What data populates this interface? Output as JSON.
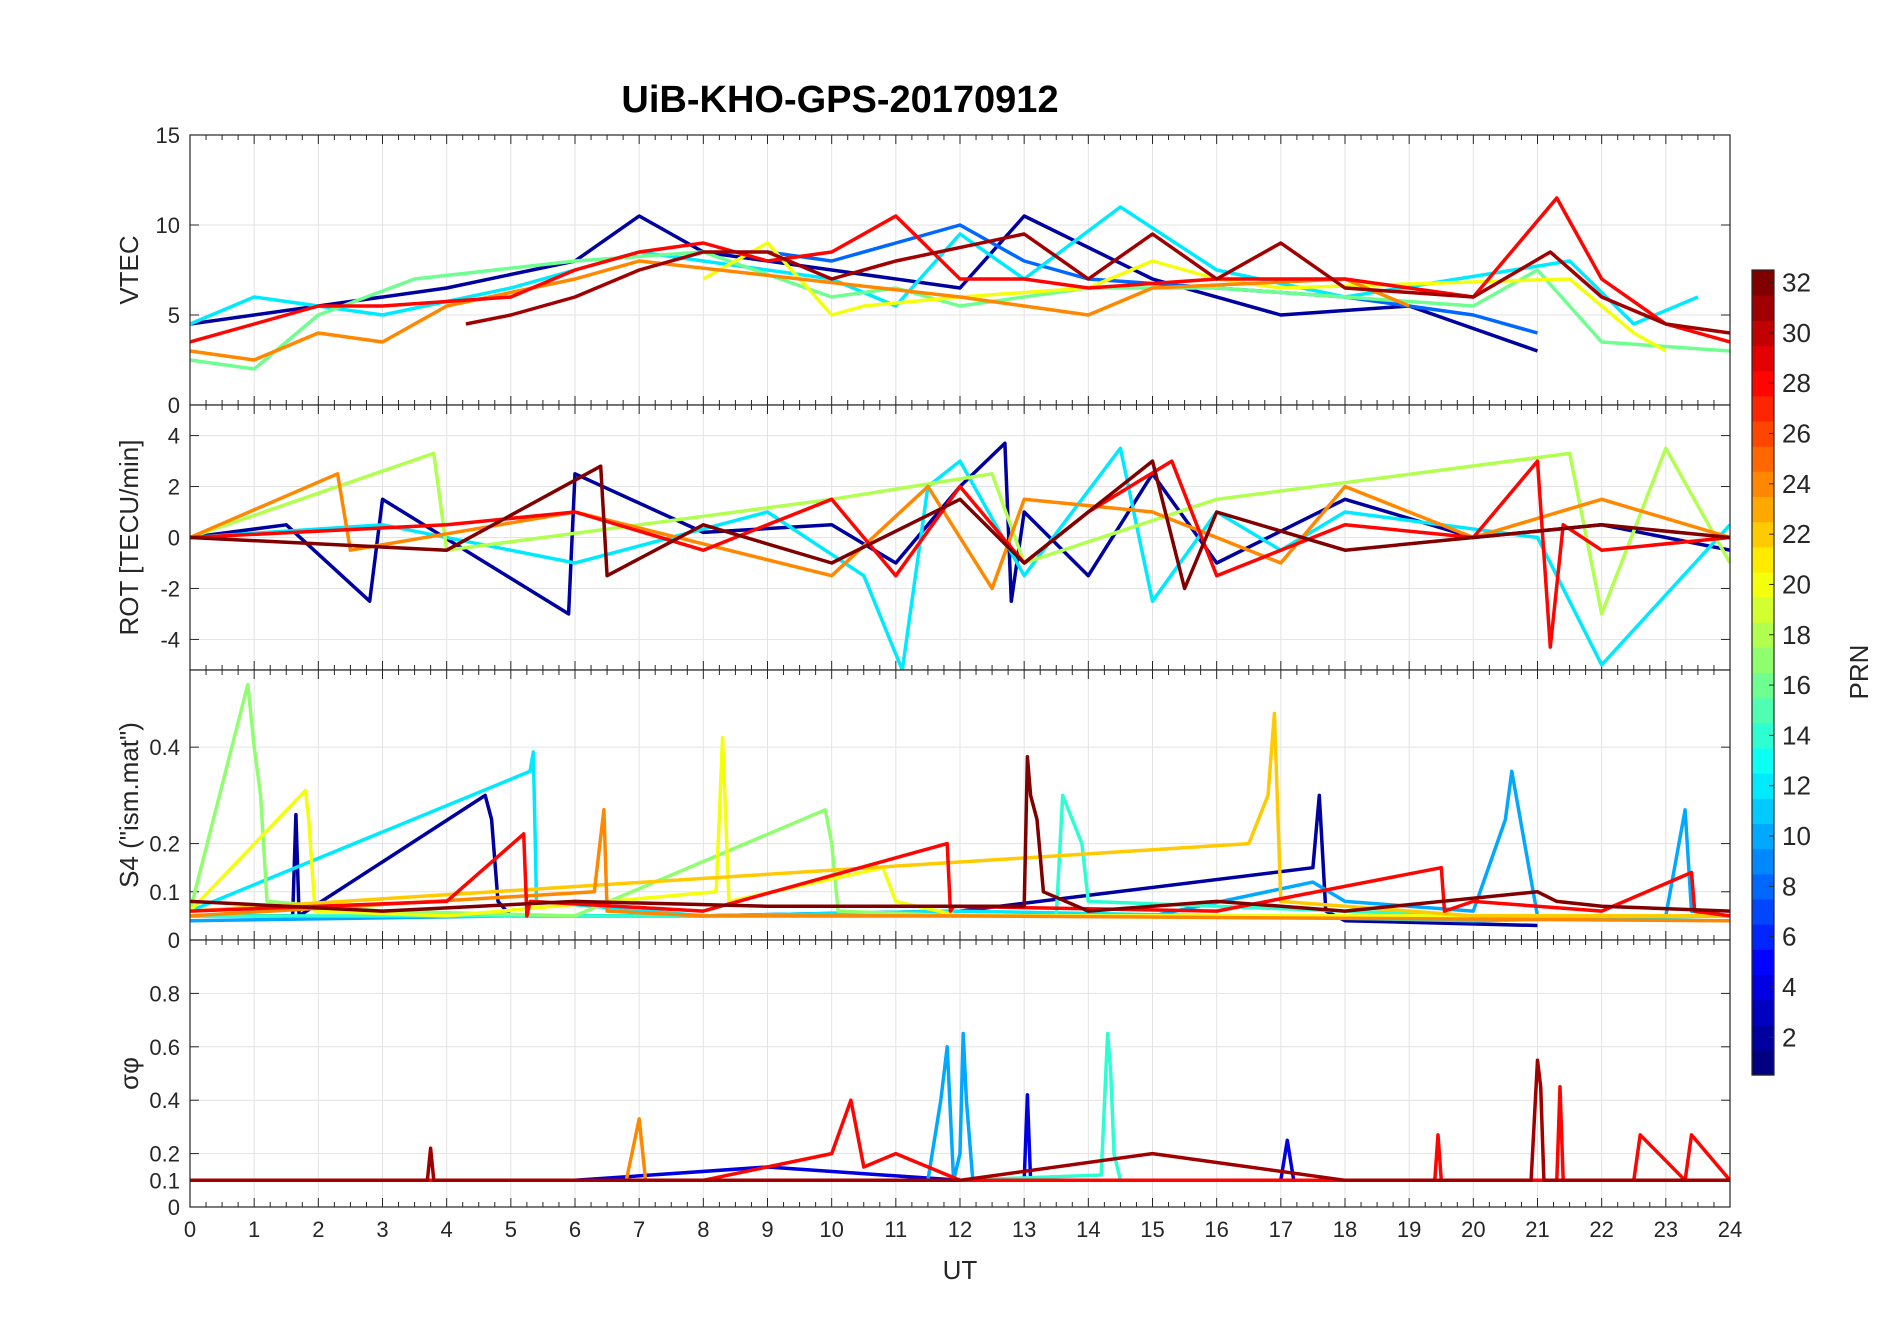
{
  "figure_title": "UiB-KHO-GPS-20170912",
  "chart_data": [
    {
      "type": "line",
      "panel": "VTEC",
      "ylabel": "VTEC",
      "ylim": [
        0,
        15
      ],
      "yticks": [
        0,
        5,
        10,
        15
      ],
      "xlim": [
        0,
        24
      ],
      "grid": true,
      "series": [
        {
          "name": "PRN 2",
          "prn": 2,
          "x": [
            0,
            2,
            4,
            6,
            7,
            8,
            10,
            12,
            13,
            15,
            17,
            19,
            21
          ],
          "values": [
            4.5,
            5.5,
            6.5,
            8.0,
            10.5,
            8.5,
            7.5,
            6.5,
            10.5,
            7.0,
            5.0,
            5.5,
            3.0
          ]
        },
        {
          "name": "PRN 8",
          "prn": 8,
          "x": [
            9,
            10,
            11,
            12,
            13,
            14,
            16,
            18,
            20,
            21
          ],
          "values": [
            8.5,
            8.0,
            9.0,
            10.0,
            8.0,
            7.0,
            6.5,
            6.0,
            5.0,
            4.0
          ]
        },
        {
          "name": "PRN 12",
          "prn": 12,
          "x": [
            0,
            1,
            3,
            5,
            7,
            10,
            11,
            12,
            13,
            14.5,
            16,
            18,
            21.5,
            22.5,
            23.5
          ],
          "values": [
            4.5,
            6.0,
            5.0,
            6.5,
            8.5,
            7.0,
            5.5,
            9.5,
            7.0,
            11.0,
            7.5,
            6.0,
            8.0,
            4.5,
            6.0
          ]
        },
        {
          "name": "PRN 16",
          "prn": 16,
          "x": [
            0,
            1,
            2,
            3.5,
            6,
            8,
            10,
            11,
            12,
            14,
            16,
            18,
            20,
            21,
            22,
            24
          ],
          "values": [
            2.5,
            2.0,
            5.0,
            7.0,
            8.0,
            8.5,
            6.0,
            6.5,
            5.5,
            6.5,
            6.5,
            6.0,
            5.5,
            7.5,
            3.5,
            3.0
          ]
        },
        {
          "name": "PRN 20",
          "prn": 20,
          "x": [
            8,
            9,
            10,
            10.5,
            12,
            14,
            15,
            16,
            17,
            21.5,
            22.5,
            23
          ],
          "values": [
            7.0,
            9.0,
            5.0,
            5.5,
            6.0,
            6.5,
            8.0,
            7.0,
            6.5,
            7.0,
            4.0,
            3.0
          ]
        },
        {
          "name": "PRN 24",
          "prn": 24,
          "x": [
            0,
            1,
            2,
            3,
            4,
            6,
            7,
            12,
            13,
            14,
            15,
            18,
            19
          ],
          "values": [
            3.0,
            2.5,
            4.0,
            3.5,
            5.5,
            7.0,
            8.0,
            6.0,
            5.5,
            5.0,
            6.5,
            7.0,
            5.5
          ]
        },
        {
          "name": "PRN 28",
          "prn": 28,
          "x": [
            0,
            1,
            2,
            3,
            5,
            6,
            7,
            8,
            9,
            10,
            11,
            12,
            13,
            14,
            16,
            18,
            20,
            21.3,
            22,
            23,
            24
          ],
          "values": [
            3.5,
            4.5,
            5.5,
            5.5,
            6.0,
            7.5,
            8.5,
            9.0,
            8.0,
            8.5,
            10.5,
            7.0,
            7.0,
            6.5,
            7.0,
            7.0,
            6.0,
            11.5,
            7.0,
            4.5,
            3.5
          ]
        },
        {
          "name": "PRN 31",
          "prn": 31,
          "x": [
            4.3,
            5,
            6,
            7,
            8,
            9,
            10,
            11,
            13,
            14,
            15,
            16,
            17,
            18,
            20,
            21.2,
            22,
            23,
            24
          ],
          "values": [
            4.5,
            5.0,
            6.0,
            7.5,
            8.5,
            8.5,
            7.0,
            8.0,
            9.5,
            7.0,
            9.5,
            7.0,
            9.0,
            6.5,
            6.0,
            8.5,
            6.0,
            4.5,
            4.0
          ]
        }
      ]
    },
    {
      "type": "line",
      "panel": "ROT",
      "ylabel": "ROT [TECU/min]",
      "ylim": [
        -5.2,
        5.2
      ],
      "yticks": [
        -4,
        -2,
        0,
        2,
        4
      ],
      "xlim": [
        0,
        24
      ],
      "grid": true,
      "series": [
        {
          "name": "PRN 2",
          "prn": 2,
          "x": [
            0,
            1.5,
            2.8,
            3,
            5.9,
            6,
            8,
            10,
            11,
            12,
            12.7,
            12.8,
            13,
            14,
            15,
            16,
            18,
            20,
            22,
            24
          ],
          "values": [
            0,
            0.5,
            -2.5,
            1.5,
            -3.0,
            2.5,
            0.2,
            0.5,
            -1.0,
            2.0,
            3.7,
            -2.5,
            1.0,
            -1.5,
            2.5,
            -1.0,
            1.5,
            0,
            0.5,
            -0.5
          ]
        },
        {
          "name": "PRN 12",
          "prn": 12,
          "x": [
            0,
            3,
            6,
            9,
            10.5,
            11.1,
            11.5,
            12,
            13,
            14.5,
            15,
            16,
            17,
            18,
            21,
            22,
            24
          ],
          "values": [
            0,
            0.5,
            -1.0,
            1.0,
            -1.5,
            -5.2,
            2.0,
            3.0,
            -1.5,
            3.5,
            -2.5,
            1.0,
            -0.5,
            1.0,
            0,
            -5.0,
            0.5
          ]
        },
        {
          "name": "PRN 18",
          "prn": 18,
          "x": [
            0,
            3.8,
            4,
            7,
            10,
            12.5,
            13,
            16,
            21.5,
            22,
            23,
            24
          ],
          "values": [
            0,
            3.3,
            -0.5,
            0.5,
            1.5,
            2.5,
            -1.0,
            1.5,
            3.3,
            -3.0,
            3.5,
            -1.0
          ]
        },
        {
          "name": "PRN 24",
          "prn": 24,
          "x": [
            0,
            2.3,
            2.5,
            6,
            10,
            11.5,
            12.5,
            13,
            15,
            17,
            18,
            20,
            22,
            24
          ],
          "values": [
            0,
            2.5,
            -0.5,
            1.0,
            -1.5,
            2.0,
            -2.0,
            1.5,
            1.0,
            -1.0,
            2.0,
            0,
            1.5,
            0
          ]
        },
        {
          "name": "PRN 28",
          "prn": 28,
          "x": [
            0,
            4,
            6,
            8,
            10,
            11,
            12,
            13,
            14,
            15.3,
            16,
            18,
            20,
            21,
            21.2,
            21.4,
            22,
            24
          ],
          "values": [
            0,
            0.5,
            1.0,
            -0.5,
            1.5,
            -1.5,
            2.0,
            -1.0,
            1.0,
            3.0,
            -1.5,
            0.5,
            0,
            3.0,
            -4.3,
            0.5,
            -0.5,
            0
          ]
        },
        {
          "name": "PRN 32",
          "prn": 32,
          "x": [
            0,
            4,
            6.4,
            6.5,
            8,
            10,
            12,
            13,
            14,
            15,
            15.5,
            16,
            18,
            20,
            22,
            24
          ],
          "values": [
            0,
            -0.5,
            2.8,
            -1.5,
            0.5,
            -1.0,
            1.5,
            -1.0,
            1.0,
            3.0,
            -2.0,
            1.0,
            -0.5,
            0,
            0.5,
            0
          ]
        }
      ]
    },
    {
      "type": "line",
      "panel": "S4",
      "ylabel": "S4 (\"ism.mat\")",
      "ylim": [
        0,
        0.56
      ],
      "yticks": [
        0,
        0.1,
        0.2,
        0.4
      ],
      "xlim": [
        0,
        24
      ],
      "grid": true,
      "series": [
        {
          "name": "PRN 2",
          "prn": 2,
          "x": [
            0,
            1.6,
            1.65,
            1.7,
            4.6,
            4.7,
            4.8,
            5,
            8,
            12,
            17.5,
            17.6,
            17.7,
            18,
            21
          ],
          "values": [
            0.05,
            0.05,
            0.26,
            0.05,
            0.3,
            0.25,
            0.08,
            0.05,
            0.05,
            0.06,
            0.15,
            0.3,
            0.06,
            0.04,
            0.03
          ]
        },
        {
          "name": "PRN 10",
          "prn": 10,
          "x": [
            0,
            5,
            10,
            15,
            17.5,
            18,
            20,
            20.5,
            20.6,
            21,
            23,
            23.3,
            23.4,
            24
          ],
          "values": [
            0.04,
            0.05,
            0.05,
            0.05,
            0.12,
            0.08,
            0.06,
            0.25,
            0.35,
            0.05,
            0.05,
            0.27,
            0.06,
            0.05
          ]
        },
        {
          "name": "PRN 12",
          "prn": 12,
          "x": [
            0,
            5.3,
            5.35,
            5.4,
            8,
            12,
            16,
            20,
            24
          ],
          "values": [
            0.06,
            0.35,
            0.39,
            0.08,
            0.05,
            0.06,
            0.05,
            0.04,
            0.05
          ]
        },
        {
          "name": "PRN 14",
          "prn": 14,
          "x": [
            0,
            13.5,
            13.6,
            13.9,
            14,
            16,
            20,
            24
          ],
          "values": [
            0.05,
            0.05,
            0.3,
            0.2,
            0.08,
            0.07,
            0.05,
            0.05
          ]
        },
        {
          "name": "PRN 17",
          "prn": 17,
          "x": [
            0,
            0.9,
            1.0,
            1.1,
            1.2,
            3,
            6,
            9.9,
            10,
            10.1,
            12,
            16,
            24
          ],
          "values": [
            0.06,
            0.53,
            0.4,
            0.3,
            0.08,
            0.06,
            0.05,
            0.27,
            0.2,
            0.06,
            0.05,
            0.05,
            0.05
          ]
        },
        {
          "name": "PRN 20",
          "prn": 20,
          "x": [
            0,
            1.8,
            1.85,
            1.95,
            4,
            8.2,
            8.3,
            8.4,
            10.8,
            11,
            12,
            24
          ],
          "values": [
            0.06,
            0.31,
            0.25,
            0.06,
            0.05,
            0.1,
            0.42,
            0.08,
            0.15,
            0.08,
            0.05,
            0.05
          ]
        },
        {
          "name": "PRN 22",
          "prn": 22,
          "x": [
            0,
            16.5,
            16.8,
            16.9,
            17,
            20,
            24
          ],
          "values": [
            0.06,
            0.2,
            0.3,
            0.47,
            0.08,
            0.05,
            0.05
          ]
        },
        {
          "name": "PRN 24",
          "prn": 24,
          "x": [
            0,
            6.3,
            6.45,
            6.5,
            8,
            12,
            24
          ],
          "values": [
            0.05,
            0.1,
            0.27,
            0.06,
            0.05,
            0.05,
            0.04
          ]
        },
        {
          "name": "PRN 28",
          "prn": 28,
          "x": [
            0,
            4,
            5.2,
            5.25,
            5.3,
            8,
            11.8,
            11.85,
            11.9,
            16,
            19.5,
            19.55,
            20,
            22,
            23.4,
            23.45,
            24
          ],
          "values": [
            0.06,
            0.08,
            0.22,
            0.05,
            0.08,
            0.06,
            0.2,
            0.06,
            0.07,
            0.06,
            0.15,
            0.06,
            0.08,
            0.06,
            0.14,
            0.06,
            0.05
          ]
        },
        {
          "name": "PRN 32",
          "prn": 32,
          "x": [
            0,
            3,
            6,
            9,
            12,
            13,
            13.05,
            13.1,
            13.2,
            13.3,
            14,
            16,
            18,
            21,
            21.3,
            22,
            24
          ],
          "values": [
            0.08,
            0.06,
            0.08,
            0.07,
            0.07,
            0.07,
            0.38,
            0.3,
            0.25,
            0.1,
            0.06,
            0.08,
            0.06,
            0.1,
            0.08,
            0.07,
            0.06
          ]
        }
      ]
    },
    {
      "type": "line",
      "panel": "sigma_phi",
      "ylabel": "σφ",
      "ylim": [
        0,
        1
      ],
      "yticks": [
        0,
        0.1,
        0.2,
        0.4,
        0.6,
        0.8
      ],
      "xlim": [
        0,
        24
      ],
      "xticks": [
        0,
        1,
        2,
        3,
        4,
        5,
        6,
        7,
        8,
        9,
        10,
        11,
        12,
        13,
        14,
        15,
        16,
        17,
        18,
        19,
        20,
        21,
        22,
        23,
        24
      ],
      "xlabel": "UT",
      "grid": true,
      "series": [
        {
          "name": "PRN 4",
          "prn": 4,
          "x": [
            0,
            6,
            9,
            12,
            13.0,
            13.05,
            13.1,
            16,
            17,
            17.1,
            17.2,
            20,
            24
          ],
          "values": [
            0.1,
            0.1,
            0.15,
            0.1,
            0.1,
            0.42,
            0.1,
            0.1,
            0.1,
            0.25,
            0.1,
            0.1,
            0.1
          ]
        },
        {
          "name": "PRN 10",
          "prn": 10,
          "x": [
            0,
            6,
            11.5,
            11.7,
            11.8,
            11.9,
            12,
            12.05,
            12.1,
            12.2,
            14,
            24
          ],
          "values": [
            0.1,
            0.1,
            0.1,
            0.4,
            0.6,
            0.1,
            0.2,
            0.65,
            0.4,
            0.1,
            0.1,
            0.1
          ]
        },
        {
          "name": "PRN 14",
          "prn": 14,
          "x": [
            0,
            6,
            12,
            14.2,
            14.3,
            14.35,
            14.4,
            14.5,
            16,
            24
          ],
          "values": [
            0.1,
            0.1,
            0.1,
            0.12,
            0.65,
            0.5,
            0.2,
            0.1,
            0.1,
            0.1
          ]
        },
        {
          "name": "PRN 24",
          "prn": 24,
          "x": [
            0,
            6,
            6.8,
            7.0,
            7.1,
            8,
            12,
            24
          ],
          "values": [
            0.1,
            0.1,
            0.1,
            0.33,
            0.1,
            0.1,
            0.1,
            0.1
          ]
        },
        {
          "name": "PRN 28",
          "prn": 28,
          "x": [
            0,
            4,
            8,
            10,
            10.3,
            10.5,
            11,
            12,
            16,
            19.4,
            19.45,
            19.5,
            21,
            21.3,
            21.35,
            21.4,
            22.5,
            22.6,
            23.3,
            23.4,
            24
          ],
          "values": [
            0.1,
            0.1,
            0.1,
            0.2,
            0.4,
            0.15,
            0.2,
            0.1,
            0.1,
            0.1,
            0.27,
            0.1,
            0.1,
            0.1,
            0.45,
            0.1,
            0.1,
            0.27,
            0.1,
            0.27,
            0.1
          ]
        },
        {
          "name": "PRN 31",
          "prn": 31,
          "x": [
            0,
            3,
            3.7,
            3.75,
            3.8,
            8,
            12,
            15,
            18,
            20.9,
            21.0,
            21.05,
            21.1,
            24
          ],
          "values": [
            0.1,
            0.1,
            0.1,
            0.22,
            0.1,
            0.1,
            0.1,
            0.2,
            0.1,
            0.1,
            0.55,
            0.45,
            0.1,
            0.1
          ]
        }
      ]
    }
  ],
  "colorbar": {
    "label": "PRN",
    "min": 1,
    "max": 32,
    "ticks": [
      2,
      4,
      6,
      8,
      10,
      12,
      14,
      16,
      18,
      20,
      22,
      24,
      26,
      28,
      30,
      32
    ]
  }
}
